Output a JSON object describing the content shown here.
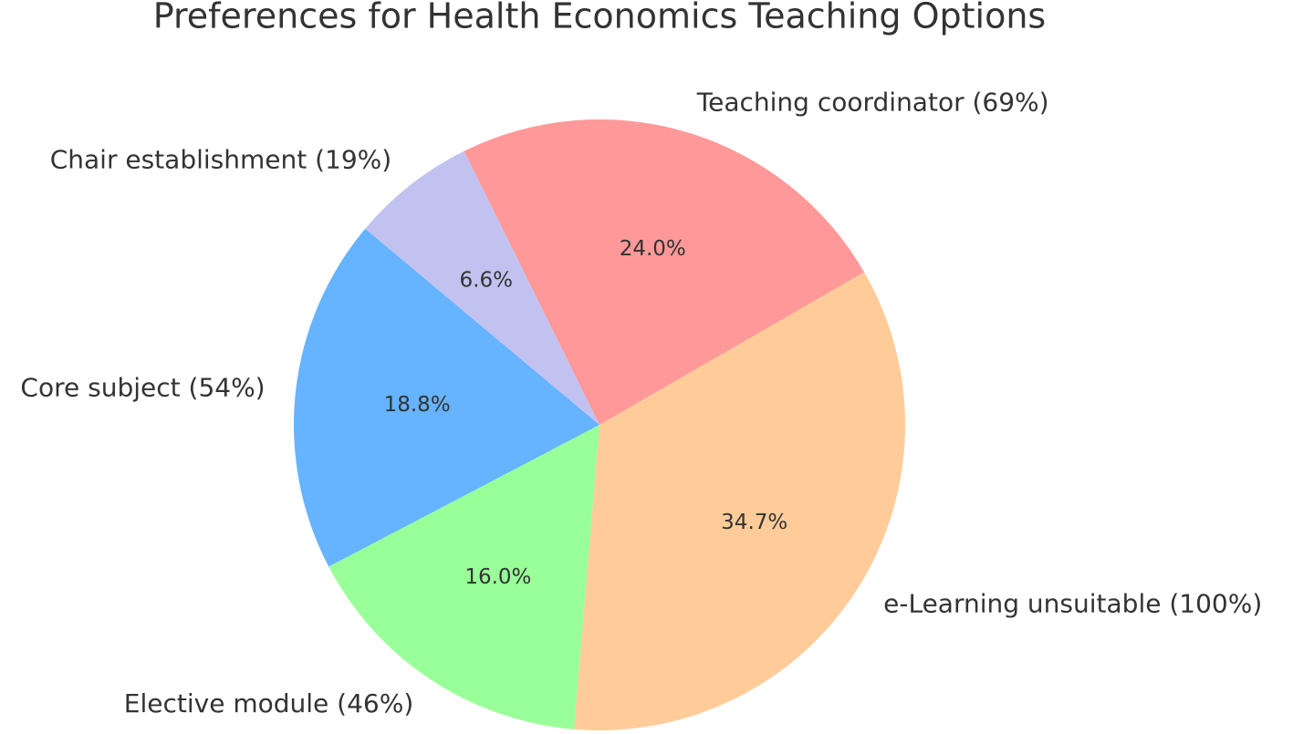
{
  "chart_data": {
    "type": "pie",
    "title": "Preferences for Health Economics Teaching Options",
    "categories": [
      "Teaching coordinator (69%)",
      "Chair establishment (19%)",
      "Core subject (54%)",
      "Elective module (46%)",
      "e-Learning unsuitable (100%)"
    ],
    "values": [
      24.0,
      6.6,
      18.8,
      16.0,
      34.7
    ],
    "value_labels": [
      "24.0%",
      "6.6%",
      "18.8%",
      "16.0%",
      "34.7%"
    ],
    "colors": [
      "#ff9999",
      "#c2c2f0",
      "#66b3ff",
      "#99ff99",
      "#ffcc99"
    ],
    "startangle": 30
  }
}
